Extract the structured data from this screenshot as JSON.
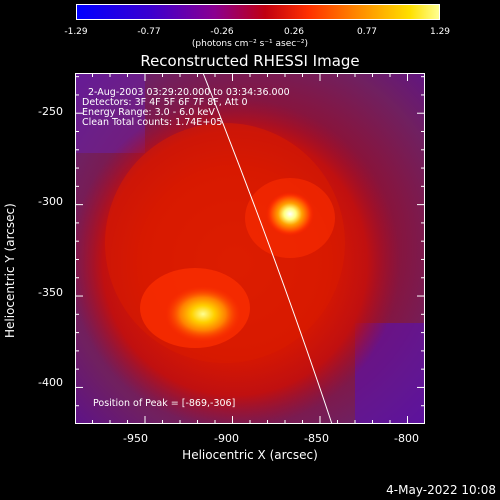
{
  "colorbar": {
    "tick_labels": [
      "-1.29",
      "-0.77",
      "-0.26",
      "0.26",
      "0.77",
      "1.29"
    ],
    "units": "(photons cm⁻² s⁻¹ asec⁻²)"
  },
  "plot": {
    "title": "Reconstructed RHESSI Image",
    "info_lines": [
      "2-Aug-2003 03:29:20.000 to 03:34:36.000",
      "Detectors: 3F 4F 5F 6F 7F 8F, Att 0",
      "Energy Range: 3.0 - 6.0 keV",
      "Clean     Total counts: 1.74E+05"
    ],
    "peak_text": "Position of Peak = [-869,-306]",
    "xlabel": "Heliocentric X (arcsec)",
    "ylabel": "Heliocentric Y (arcsec)",
    "x_ticks": [
      "-950",
      "-900",
      "-850",
      "-800"
    ],
    "y_ticks": [
      "-250",
      "-300",
      "-350",
      "-400"
    ],
    "x_range": [
      -990,
      -790
    ],
    "y_range": [
      -420,
      -228
    ],
    "x_tick_values": [
      -950,
      -900,
      -850,
      -800
    ],
    "y_tick_values": [
      -250,
      -300,
      -350,
      -400
    ],
    "peak_position": [
      -869,
      -306
    ]
  },
  "footer": {
    "date": "4-May-2022 10:08"
  },
  "colors": {
    "background": "#000000",
    "foreground": "#ffffff",
    "colormap": [
      "#0000ff",
      "#5000b0",
      "#b00020",
      "#ff2000",
      "#ff9000",
      "#ffff60",
      "#ffffff"
    ]
  }
}
